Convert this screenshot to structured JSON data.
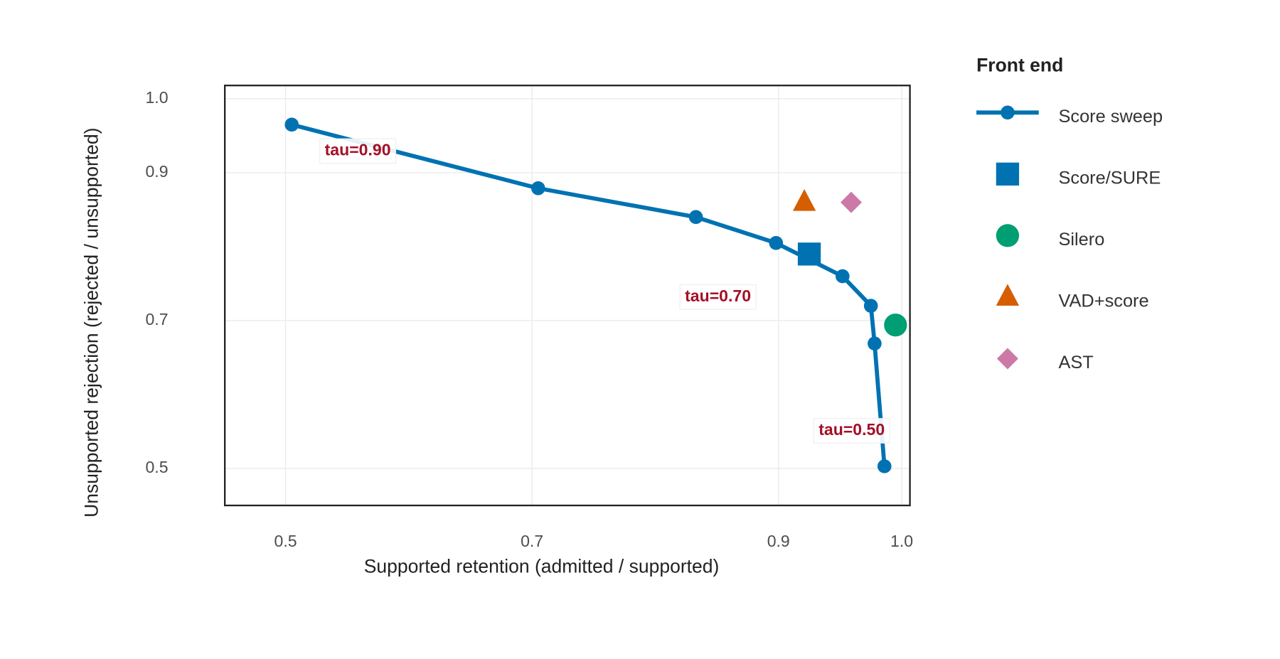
{
  "chart_data": {
    "type": "line",
    "x_label": "Supported retention (admitted / supported)",
    "y_label": "Unsupported rejection (rejected / unsupported)",
    "legend_title": "Front end",
    "legend": "right",
    "grid": true,
    "xlim": [
      0.4507,
      1.0067
    ],
    "ylim": [
      0.45,
      1.018
    ],
    "xticks": [
      0.5,
      0.7,
      0.9,
      {
        "value": 1,
        "label": "1.0"
      }
    ],
    "yticks": [
      0.5,
      0.7,
      0.9,
      {
        "value": 1,
        "label": "1.0"
      }
    ],
    "series": [
      {
        "name": "Score sweep",
        "color": "#0072b2",
        "marker": "line",
        "x": [
          0.505,
          0.705,
          0.833,
          0.898,
          0.952,
          0.975,
          0.978,
          0.986
        ],
        "values": [
          0.965,
          0.879,
          0.84,
          0.805,
          0.76,
          0.72,
          0.669,
          0.503
        ]
      },
      {
        "name": "Score/SURE",
        "color": "#0072b2",
        "marker": "square",
        "x": [
          0.925
        ],
        "values": [
          0.79
        ]
      },
      {
        "name": "Silero",
        "color": "#009e73",
        "marker": "circle",
        "x": [
          0.995
        ],
        "values": [
          0.694
        ]
      },
      {
        "name": "VAD+score",
        "color": "#d55e00",
        "marker": "triangle",
        "x": [
          0.921
        ],
        "values": [
          0.86
        ]
      },
      {
        "name": "AST",
        "color": "#cc79a7",
        "marker": "diamond",
        "x": [
          0.959
        ],
        "values": [
          0.86
        ]
      }
    ],
    "annotations": [
      "tau=0.90",
      "tau=0.70",
      "tau=0.50"
    ]
  }
}
